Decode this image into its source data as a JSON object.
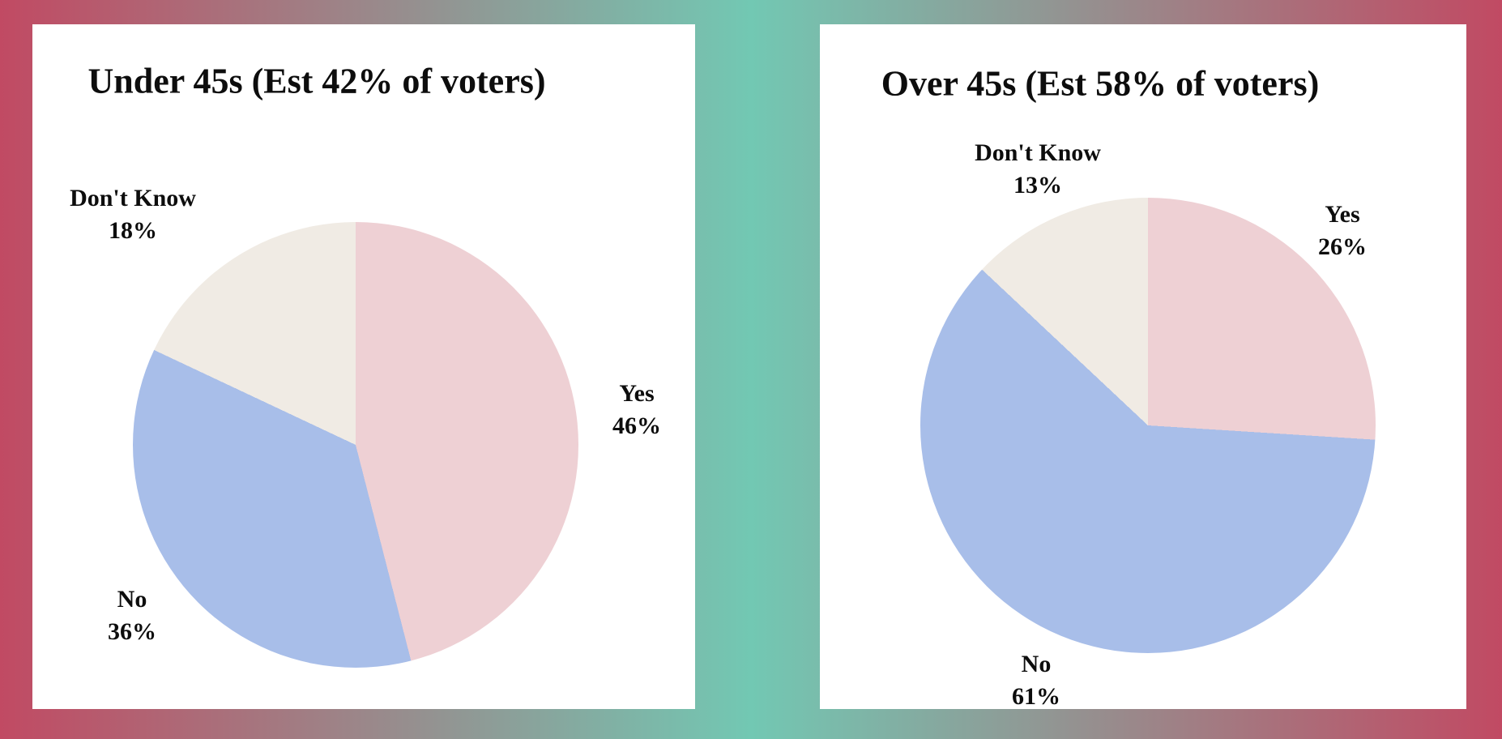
{
  "page": {
    "background_gradient": [
      "#c14a63",
      "#72c8b3",
      "#c14a63"
    ],
    "card_background": "#ffffff",
    "text_color": "#0d0d0d"
  },
  "chart_data": [
    {
      "type": "pie",
      "title": "Under 45s (Est 42% of voters)",
      "labels": [
        "Yes",
        "No",
        "Don't Know"
      ],
      "values": [
        46,
        36,
        18
      ],
      "unit": "%",
      "colors": [
        "#eed0d4",
        "#a8bee9",
        "#f0ebe4"
      ],
      "start_angle_deg": 0,
      "direction": "clockwise",
      "label_position": "outside",
      "legend": "none"
    },
    {
      "type": "pie",
      "title": "Over 45s (Est 58% of voters)",
      "labels": [
        "Yes",
        "No",
        "Don't Know"
      ],
      "values": [
        26,
        61,
        13
      ],
      "unit": "%",
      "colors": [
        "#eed0d4",
        "#a8bee9",
        "#f0ebe4"
      ],
      "start_angle_deg": 0,
      "direction": "clockwise",
      "label_position": "outside",
      "legend": "none"
    }
  ]
}
